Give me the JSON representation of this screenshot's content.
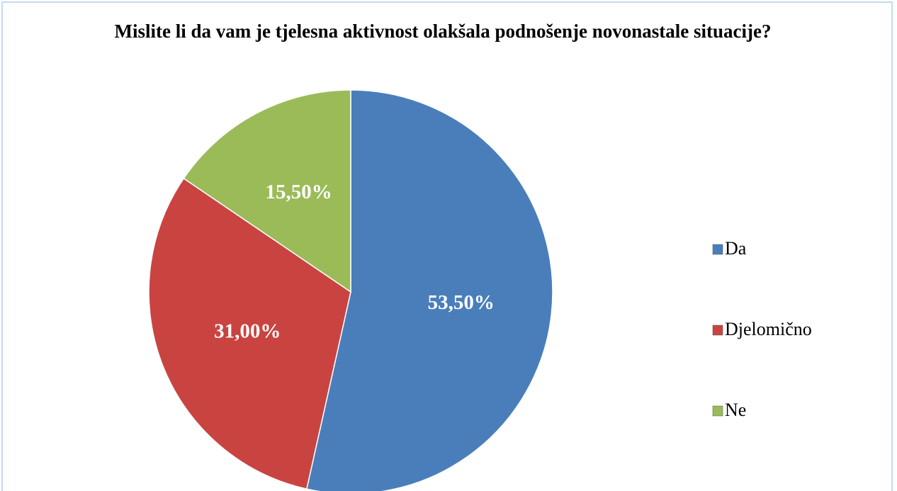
{
  "chart_data": {
    "type": "pie",
    "title": "Mislite li da vam je tjelesna aktivnost olakšala podnošenje novonastale situacije?",
    "categories": [
      "Da",
      "Djelomično",
      "Ne"
    ],
    "values": [
      53.5,
      31,
      15.5
    ],
    "value_labels": [
      "53,50%",
      "31,00%",
      "15,50%"
    ],
    "colors": [
      "#4a7ebb",
      "#c94441",
      "#9bbb59"
    ],
    "legend": "right"
  }
}
